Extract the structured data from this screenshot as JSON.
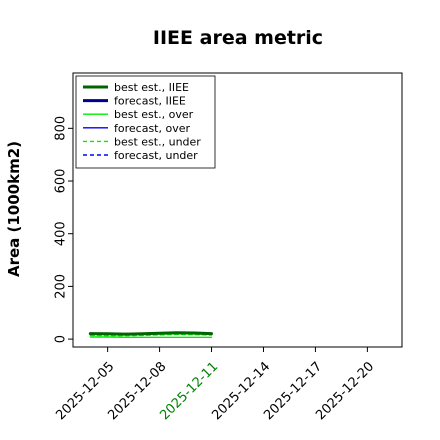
{
  "chart_data": {
    "type": "line",
    "title": "IIEE area metric",
    "xlabel": "",
    "ylabel": "Area (1000km2)",
    "x_type": "date",
    "xlim": [
      "2025-12-03",
      "2025-12-22"
    ],
    "ylim": [
      -30,
      1010
    ],
    "y_ticks": [
      0,
      200,
      400,
      600,
      800
    ],
    "x_ticks": [
      {
        "date": "2025-12-05",
        "label": "2025-12-05",
        "color": "#000000"
      },
      {
        "date": "2025-12-08",
        "label": "2025-12-08",
        "color": "#000000"
      },
      {
        "date": "2025-12-11",
        "label": "2025-12-11",
        "color": "#008000"
      },
      {
        "date": "2025-12-14",
        "label": "2025-12-14",
        "color": "#000000"
      },
      {
        "date": "2025-12-17",
        "label": "2025-12-17",
        "color": "#000000"
      },
      {
        "date": "2025-12-20",
        "label": "2025-12-20",
        "color": "#000000"
      }
    ],
    "legend_position": "top-left",
    "grid": false,
    "series": [
      {
        "name": "best est., IIEE",
        "color": "#006400",
        "style": "solid",
        "width": 3,
        "x": [
          "2025-12-04",
          "2025-12-05",
          "2025-12-06",
          "2025-12-07",
          "2025-12-08",
          "2025-12-09",
          "2025-12-10",
          "2025-12-11"
        ],
        "y": [
          21,
          20,
          19,
          20,
          22,
          24,
          23,
          21
        ]
      },
      {
        "name": "forecast, IIEE",
        "color": "#00008b",
        "style": "solid",
        "width": 3,
        "x": [],
        "y": []
      },
      {
        "name": "best est., over",
        "color": "#00ee00",
        "style": "solid",
        "width": 1.4,
        "x": [
          "2025-12-04",
          "2025-12-05",
          "2025-12-06",
          "2025-12-07",
          "2025-12-08",
          "2025-12-09",
          "2025-12-10",
          "2025-12-11"
        ],
        "y": [
          8,
          8,
          7,
          7,
          7,
          7,
          7,
          7
        ]
      },
      {
        "name": "forecast, over",
        "color": "#0000ff",
        "style": "solid",
        "width": 1.4,
        "x": [],
        "y": []
      },
      {
        "name": "best est., under",
        "color": "#00ee00",
        "style": "dashed",
        "width": 1.4,
        "x": [
          "2025-12-04",
          "2025-12-05",
          "2025-12-06",
          "2025-12-07",
          "2025-12-08",
          "2025-12-09",
          "2025-12-10",
          "2025-12-11"
        ],
        "y": [
          14,
          13,
          13,
          14,
          16,
          18,
          17,
          15
        ]
      },
      {
        "name": "forecast, under",
        "color": "#0000ff",
        "style": "dashed",
        "width": 1.4,
        "x": [],
        "y": []
      }
    ]
  }
}
